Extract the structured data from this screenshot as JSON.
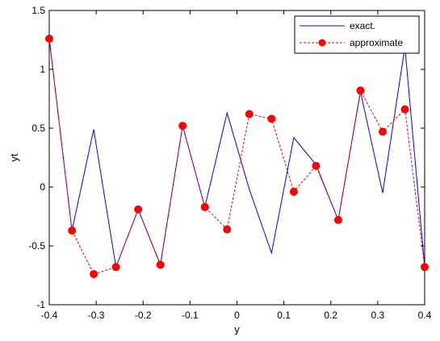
{
  "chart_data": {
    "type": "line",
    "xlabel": "y",
    "ylabel": "yt",
    "xlim": [
      -0.4,
      0.4
    ],
    "ylim": [
      -1,
      1.5
    ],
    "xticks": [
      -0.4,
      -0.3,
      -0.2,
      -0.1,
      0,
      0.1,
      0.2,
      0.3,
      0.4
    ],
    "xtick_labels": [
      "-0.4",
      "-0.3",
      "-0.2",
      "-0.1",
      "0",
      "0.1",
      "0.2",
      "0.3",
      "0.4"
    ],
    "yticks": [
      -1,
      -0.5,
      0,
      0.5,
      1,
      1.5
    ],
    "ytick_labels": [
      "-1",
      "-0.5",
      "0",
      "0.5",
      "1",
      "1.5"
    ],
    "grid": false,
    "legend_position": "top-right",
    "x": [
      -0.4,
      -0.3516,
      -0.3053,
      -0.2579,
      -0.2105,
      -0.1632,
      -0.1158,
      -0.0684,
      -0.0211,
      0.0263,
      0.0737,
      0.1211,
      0.1684,
      0.2158,
      0.2632,
      0.3105,
      0.3579,
      0.4
    ],
    "series": [
      {
        "name": "exact.",
        "color": "#0000ff",
        "style": "solid",
        "marker": "none",
        "values": [
          1.26,
          -0.37,
          0.49,
          -0.68,
          -0.19,
          -0.66,
          0.52,
          -0.17,
          0.63,
          -0.02,
          -0.56,
          0.42,
          0.19,
          -0.28,
          0.81,
          -0.05,
          1.19,
          -0.68
        ]
      },
      {
        "name": "approximate",
        "color": "#ff0000",
        "style": "dashed",
        "marker": "circle",
        "values": [
          1.26,
          -0.37,
          -0.74,
          -0.68,
          -0.19,
          -0.66,
          0.52,
          -0.17,
          -0.36,
          0.62,
          0.58,
          -0.04,
          0.18,
          -0.28,
          0.82,
          0.47,
          0.66,
          -0.68
        ]
      }
    ]
  }
}
